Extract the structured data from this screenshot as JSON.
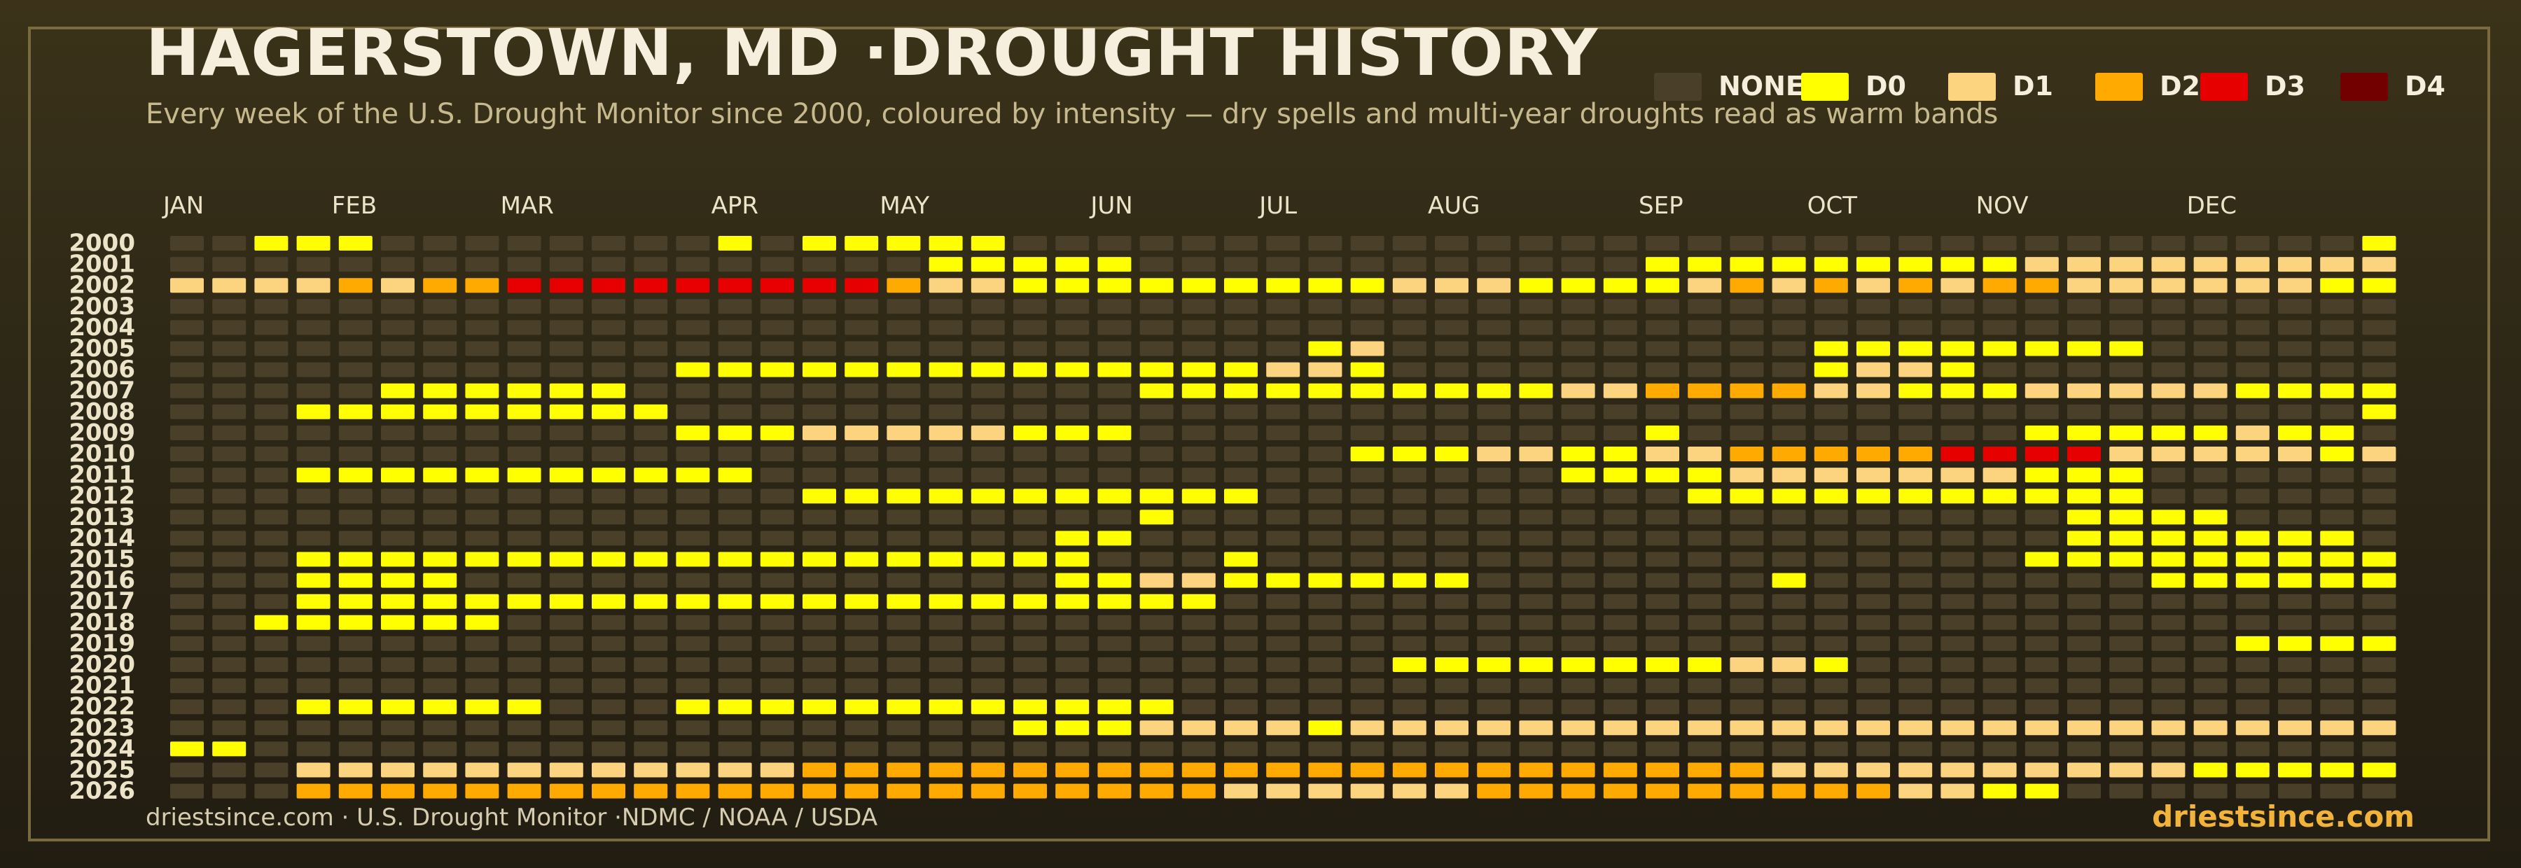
{
  "title": "HAGERSTOWN, MD ·DROUGHT HISTORY",
  "subtitle": "Every week of the U.S. Drought Monitor since 2000, coloured by intensity — dry spells and multi-year droughts read as warm bands",
  "footer": {
    "source": "driestsince.com  · U.S. Drought Monitor ·NDMC / NOAA / USDA",
    "brand": "driestsince.com"
  },
  "legend": [
    {
      "label": "NONE",
      "color": "#4a3f28"
    },
    {
      "label": "D0",
      "color": "#ffff00"
    },
    {
      "label": "D1",
      "color": "#fcd37f"
    },
    {
      "label": "D2",
      "color": "#ffaa00"
    },
    {
      "label": "D3",
      "color": "#e60000"
    },
    {
      "label": "D4",
      "color": "#730000"
    }
  ],
  "chart_data": {
    "type": "heatmap",
    "months": [
      "JAN",
      "FEB",
      "MAR",
      "APR",
      "MAY",
      "JUN",
      "JUL",
      "AUG",
      "SEP",
      "OCT",
      "NOV",
      "DEC"
    ],
    "years": [
      2000,
      2001,
      2002,
      2003,
      2004,
      2005,
      2006,
      2007,
      2008,
      2009,
      2010,
      2011,
      2012,
      2013,
      2014,
      2015,
      2016,
      2017,
      2018,
      2019,
      2020,
      2021,
      2022,
      2023,
      2024,
      2025,
      2026
    ],
    "levels": [
      "NONE",
      "D0",
      "D1",
      "D2",
      "D3",
      "D4"
    ],
    "weeks_per_year": 53,
    "cells": [
      "00111000000001011111000000000000000000000000000000001",
      "00000000000000000011111000000000000111111111222222222",
      "22223233444444444322111111111222111123232323322222211",
      "00000000000000000000000000000000000000000000000000000",
      "00000000000000000000000000000000000000000000000000000",
      "00000000000000000000000000012000000000011111111000000",
      "00000000000011111111111111221000000000012210000000000",
      "00000111111000000000000111111111122333322111222221111",
      "00011111111100000000000000000000000000000000000000001",
      "00000000000011122222111000000000000100000000111112110",
      "00000000000000000000000000001112211223333344442222212",
      "00011111111111000000000000000000011112222222111000000",
      "00000000000000011111111111000000000011111111111000000",
      "00000000000000000000000100000000000000000000011110000",
      "00000000000000000000011000000000000000000000011111110",
      "00011111111111111111110001000000000000000000111111111",
      "00011110000000000000011221111110000000100000000111111",
      "00011111111111111111111110000000000000000000000000000",
      "00111111000000000000000000000000000000000000000000000",
      "00000000000000000000000000000000000000000000000001111",
      "00000000000000000000000000000111111112210000000000000",
      "00000000000000000000000000000000000000000000000000000",
      "00011111100011111111111100000000000000000000000000000",
      "00000000000000000000111222212222222222222222222222222",
      "11000000000000000000000000000000000000000000000000000",
      "00022222222222233333333333333333333333222222222211111",
      "00033333333333333333333332222223333333333221100000000"
    ],
    "xlabel": "",
    "ylabel": ""
  }
}
